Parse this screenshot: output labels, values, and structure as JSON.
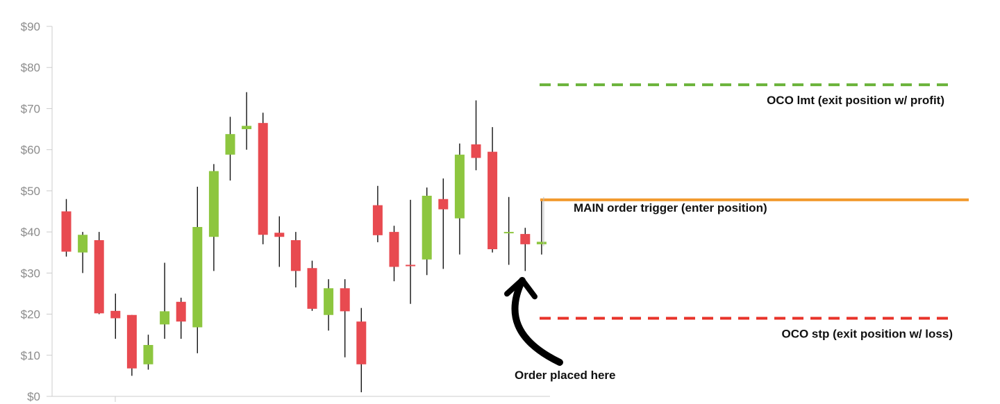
{
  "chart_data": {
    "type": "candlestick",
    "title": "",
    "xlabel": "",
    "ylabel": "",
    "ylim": [
      0,
      90
    ],
    "y_ticks": [
      {
        "value": 0,
        "label": "$0"
      },
      {
        "value": 10,
        "label": "$10"
      },
      {
        "value": 20,
        "label": "$20"
      },
      {
        "value": 30,
        "label": "$30"
      },
      {
        "value": 40,
        "label": "$40"
      },
      {
        "value": 50,
        "label": "$50"
      },
      {
        "value": 60,
        "label": "$60"
      },
      {
        "value": 70,
        "label": "$70"
      },
      {
        "value": 80,
        "label": "$80"
      },
      {
        "value": 90,
        "label": "$90"
      }
    ],
    "grid": false,
    "colors": {
      "up": "#8dc63f",
      "down": "#e84a50",
      "axis": "#cccccc",
      "main": "#f29a2e",
      "oco_lmt": "#6bb33a",
      "oco_stp": "#e8332a",
      "arrow": "#000000"
    },
    "candles": [
      {
        "open": 45.0,
        "high": 48.0,
        "low": 34.0,
        "close": 35.2
      },
      {
        "open": 35.0,
        "high": 40.0,
        "low": 30.0,
        "close": 39.3
      },
      {
        "open": 38.0,
        "high": 40.0,
        "low": 20.0,
        "close": 20.2
      },
      {
        "open": 20.8,
        "high": 25.0,
        "low": 14.0,
        "close": 19.0
      },
      {
        "open": 19.8,
        "high": 19.8,
        "low": 5.0,
        "close": 6.8
      },
      {
        "open": 7.8,
        "high": 15.0,
        "low": 6.5,
        "close": 12.5
      },
      {
        "open": 17.5,
        "high": 32.5,
        "low": 14.0,
        "close": 20.7
      },
      {
        "open": 23.0,
        "high": 24.0,
        "low": 14.0,
        "close": 18.2
      },
      {
        "open": 16.8,
        "high": 51.0,
        "low": 10.5,
        "close": 41.2
      },
      {
        "open": 38.8,
        "high": 56.5,
        "low": 30.5,
        "close": 54.8
      },
      {
        "open": 58.8,
        "high": 68.0,
        "low": 52.5,
        "close": 63.8
      },
      {
        "open": 65.0,
        "high": 74.0,
        "low": 60.0,
        "close": 65.8
      },
      {
        "open": 66.5,
        "high": 69.0,
        "low": 37.0,
        "close": 39.3
      },
      {
        "open": 39.8,
        "high": 43.8,
        "low": 31.5,
        "close": 38.8
      },
      {
        "open": 38.0,
        "high": 40.0,
        "low": 26.5,
        "close": 30.5
      },
      {
        "open": 31.2,
        "high": 33.0,
        "low": 20.8,
        "close": 21.3
      },
      {
        "open": 19.8,
        "high": 28.5,
        "low": 16.0,
        "close": 26.3
      },
      {
        "open": 26.3,
        "high": 28.5,
        "low": 9.5,
        "close": 20.7
      },
      {
        "open": 18.2,
        "high": 21.5,
        "low": 1.0,
        "close": 7.8
      },
      {
        "open": 46.5,
        "high": 51.2,
        "low": 37.5,
        "close": 39.2
      },
      {
        "open": 40.0,
        "high": 41.5,
        "low": 28.0,
        "close": 31.5
      },
      {
        "open": 32.0,
        "high": 47.8,
        "low": 22.5,
        "close": 31.8
      },
      {
        "open": 33.3,
        "high": 50.8,
        "low": 29.5,
        "close": 48.8
      },
      {
        "open": 48.0,
        "high": 53.0,
        "low": 31.0,
        "close": 45.5
      },
      {
        "open": 43.3,
        "high": 61.5,
        "low": 34.5,
        "close": 58.8
      },
      {
        "open": 61.3,
        "high": 72.0,
        "low": 55.0,
        "close": 58.0
      },
      {
        "open": 59.5,
        "high": 65.5,
        "low": 35.0,
        "close": 35.8
      },
      {
        "open": 39.8,
        "high": 48.5,
        "low": 32.0,
        "close": 40.0
      },
      {
        "open": 39.5,
        "high": 41.0,
        "low": 30.5,
        "close": 37.0
      },
      {
        "open": 37.0,
        "high": 48.0,
        "low": 34.5,
        "close": 37.6
      }
    ],
    "levels": [
      {
        "name": "oco_lmt",
        "value": 75.8,
        "label": "OCO lmt (exit position w/ profit)",
        "style": "dashed",
        "color": "#6bb33a"
      },
      {
        "name": "main",
        "value": 47.8,
        "label": "MAIN order trigger (enter position)",
        "style": "solid",
        "color": "#f29a2e"
      },
      {
        "name": "oco_stp",
        "value": 19.0,
        "label": "OCO stp (exit position w/ loss)",
        "style": "dashed",
        "color": "#e8332a"
      }
    ],
    "annotation": {
      "label": "Order placed here",
      "points_to_value": 29.0
    }
  }
}
